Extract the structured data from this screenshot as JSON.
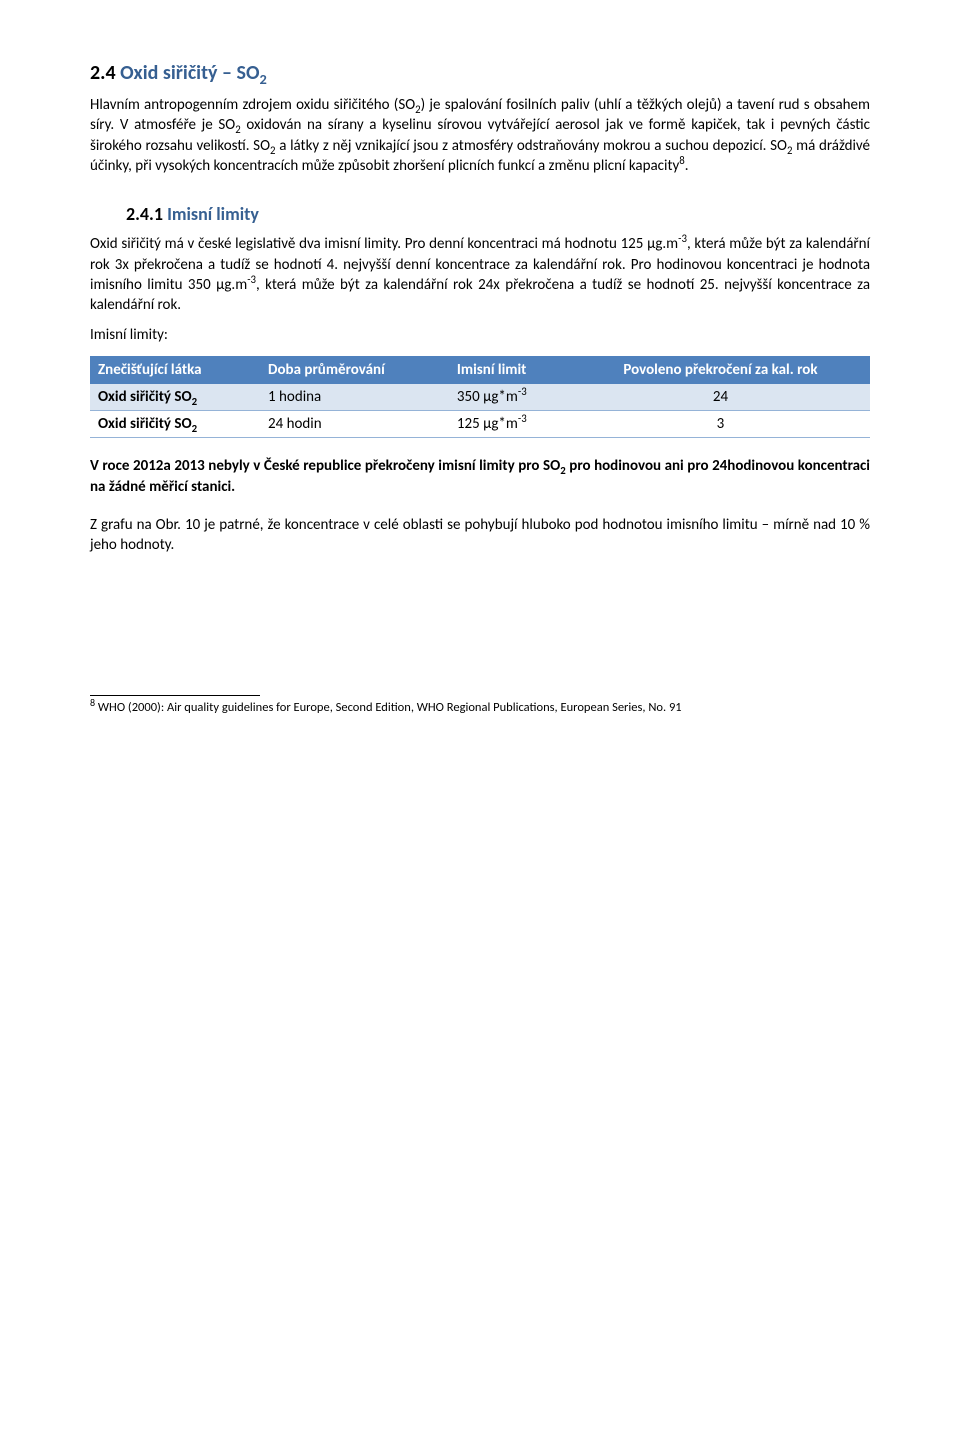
{
  "section": {
    "number": "2.4",
    "title": "Oxid siřičitý – SO",
    "title_sub": "2"
  },
  "para1_html": "Hlavním antropogenním zdrojem oxidu siřičitého (SO<sub>2</sub>) je spalování fosilních paliv (uhlí a těžkých olejů) a tavení rud s obsahem síry. V atmosféře je SO<sub>2</sub> oxidován na sírany a kyselinu sírovou vytvářející aerosol jak ve formě kapiček, tak i pevných částic širokého rozsahu velikostí. SO<sub>2</sub> a látky z něj vznikající jsou z atmosféry odstraňovány mokrou a suchou depozicí. SO<sub>2</sub> má dráždivé účinky, při vysokých koncentracích může způsobit zhoršení plicních funkcí a změnu plicní kapacity<sup>8</sup>.",
  "subsection": {
    "number": "2.4.1",
    "title": "Imisní limity"
  },
  "para2_html": "Oxid siřičitý má v české legislativě dva imisní limity. Pro denní koncentraci má hodnotu 125 µg.m<sup>-3</sup>, která může být za kalendářní rok 3x překročena a tudíž se hodnotí 4. nejvyšší denní koncentrace za kalendářní rok. Pro hodinovou koncentraci je hodnota imisního limitu 350 µg.m<sup>-3</sup>, která může být za kalendářní rok 24x překročena a tudíž se hodnotí 25. nejvyšší koncentrace za kalendářní rok.",
  "limits_label": "Imisní limity:",
  "table": {
    "headers": [
      "Znečišťující látka",
      "Doba průměrování",
      "Imisní limit",
      "Povoleno překročení za kal. rok"
    ],
    "rows": [
      {
        "cells_html": [
          "<span class=\"bold\">Oxid siřičitý SO<sub>2</sub></span>",
          "1 hodina",
          "350 µg*m<sup>-3</sup>",
          "24"
        ],
        "stripe": "a"
      },
      {
        "cells_html": [
          "<span class=\"bold\">Oxid siřičitý SO<sub>2</sub></span>",
          "24 hodin",
          "125 µg*m<sup>-3</sup>",
          "3"
        ],
        "stripe": "b"
      }
    ],
    "col_align": [
      "left",
      "left",
      "left",
      "center"
    ]
  },
  "para3_html": "<span class=\"bold\">V roce 2012a 2013 nebyly v České republice překročeny imisní limity pro SO<sub>2</sub> pro hodinovou ani pro 24hodinovou koncentraci na žádné měřicí stanici.</span>",
  "para4_html": "Z grafu na Obr. 10 je patrné, že koncentrace v celé oblasti se pohybují hluboko pod hodnotou imisního limitu – mírně nad 10 % jeho hodnoty.",
  "footnote_html": "<sup>8</sup> WHO (2000): Air quality guidelines for Europe, Second Edition, WHO Regional Publications, European Series, No. 91",
  "colors": {
    "heading_blue": "#365f91",
    "table_header_bg": "#4f81bd",
    "row_a_bg": "#dbe5f1",
    "row_border": "#95b3d7",
    "text": "#000000",
    "bg": "#ffffff"
  },
  "fonts": {
    "body_pt": 11,
    "h2_pt": 15,
    "h3_pt": 13,
    "footnote_pt": 9.5
  }
}
